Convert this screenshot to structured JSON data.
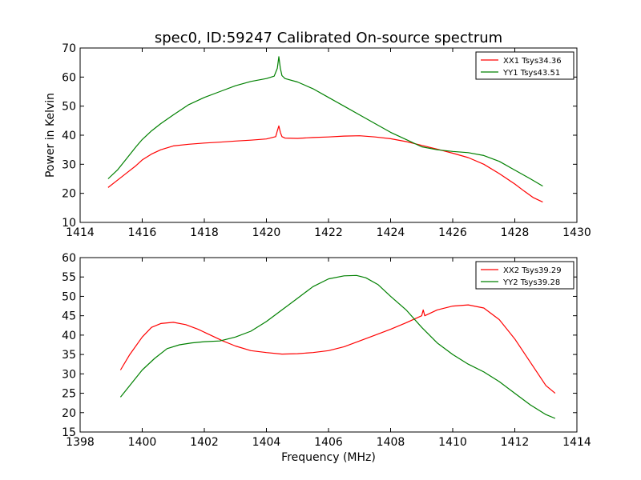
{
  "figure": {
    "title": "spec0, ID:59247 Calibrated On-source spectrum"
  },
  "chart_data": [
    {
      "type": "line",
      "title": "spec0, ID:59247 Calibrated On-source spectrum",
      "xlabel": "",
      "ylabel": "Power in Kelvin",
      "xlim": [
        1414,
        1430
      ],
      "ylim": [
        10,
        70
      ],
      "xticks": [
        1414,
        1416,
        1418,
        1420,
        1422,
        1424,
        1426,
        1428,
        1430
      ],
      "yticks": [
        10,
        20,
        30,
        40,
        50,
        60,
        70
      ],
      "grid": false,
      "legend": "top-right",
      "series": [
        {
          "name": "XX1 Tsys34.36",
          "color": "#ff0000",
          "x": [
            1414.9,
            1415.2,
            1415.5,
            1415.8,
            1416.0,
            1416.3,
            1416.6,
            1417.0,
            1417.5,
            1418.0,
            1418.5,
            1419.0,
            1419.5,
            1420.0,
            1420.3,
            1420.35,
            1420.4,
            1420.45,
            1420.5,
            1420.6,
            1421.0,
            1421.5,
            1422.0,
            1422.5,
            1423.0,
            1423.5,
            1424.0,
            1424.5,
            1425.0,
            1425.5,
            1426.0,
            1426.5,
            1427.0,
            1427.5,
            1428.0,
            1428.3,
            1428.6,
            1428.9
          ],
          "y": [
            22,
            24.5,
            27,
            29.5,
            31.5,
            33.5,
            35,
            36.3,
            36.9,
            37.3,
            37.6,
            38,
            38.3,
            38.7,
            39.5,
            41.5,
            43.2,
            41,
            39.5,
            39,
            38.9,
            39.2,
            39.4,
            39.7,
            39.8,
            39.4,
            38.8,
            37.8,
            36.5,
            35.2,
            33.8,
            32.3,
            30,
            26.8,
            23.2,
            20.8,
            18.5,
            17
          ]
        },
        {
          "name": "YY1 Tsys43.51",
          "color": "#008000",
          "x": [
            1414.9,
            1415.2,
            1415.5,
            1415.8,
            1416.0,
            1416.3,
            1416.6,
            1417.0,
            1417.5,
            1418.0,
            1418.5,
            1419.0,
            1419.5,
            1420.0,
            1420.25,
            1420.35,
            1420.4,
            1420.45,
            1420.5,
            1420.6,
            1421.0,
            1421.5,
            1422.0,
            1422.5,
            1423.0,
            1423.5,
            1424.0,
            1424.5,
            1425.0,
            1425.5,
            1426.0,
            1426.5,
            1427.0,
            1427.5,
            1428.0,
            1428.5,
            1428.9
          ],
          "y": [
            25,
            28,
            32,
            36,
            38.5,
            41.5,
            44,
            47,
            50.5,
            53,
            55,
            57,
            58.5,
            59.5,
            60.3,
            63,
            67,
            63,
            60.5,
            59.5,
            58.3,
            56,
            53,
            50,
            47,
            44,
            41,
            38.5,
            36,
            35,
            34.4,
            34,
            33,
            31,
            28,
            25,
            22.5
          ]
        }
      ]
    },
    {
      "type": "line",
      "title": "",
      "xlabel": "Frequency (MHz)",
      "ylabel": "",
      "xlim": [
        1398,
        1414
      ],
      "ylim": [
        15,
        60
      ],
      "xticks": [
        1398,
        1400,
        1402,
        1404,
        1406,
        1408,
        1410,
        1412,
        1414
      ],
      "yticks": [
        15,
        20,
        25,
        30,
        35,
        40,
        45,
        50,
        55,
        60
      ],
      "grid": false,
      "legend": "top-right",
      "series": [
        {
          "name": "XX2 Tsys39.29",
          "color": "#ff0000",
          "x": [
            1399.3,
            1399.6,
            1400.0,
            1400.3,
            1400.6,
            1401.0,
            1401.4,
            1401.8,
            1402.2,
            1402.6,
            1403.0,
            1403.5,
            1404.0,
            1404.5,
            1405.0,
            1405.5,
            1406.0,
            1406.5,
            1407.0,
            1407.5,
            1408.0,
            1408.5,
            1409.0,
            1409.05,
            1409.1,
            1409.5,
            1410.0,
            1410.5,
            1411.0,
            1411.5,
            1412.0,
            1412.5,
            1413.0,
            1413.3
          ],
          "y": [
            31,
            35,
            39.5,
            42,
            43,
            43.3,
            42.7,
            41.5,
            40,
            38.5,
            37.2,
            36,
            35.5,
            35.1,
            35.2,
            35.5,
            36,
            37,
            38.5,
            40,
            41.5,
            43.2,
            45,
            46.5,
            45,
            46.5,
            47.5,
            47.8,
            47,
            44,
            39,
            33,
            27,
            25
          ]
        },
        {
          "name": "YY2 Tsys39.28",
          "color": "#008000",
          "x": [
            1399.3,
            1399.6,
            1400.0,
            1400.4,
            1400.8,
            1401.2,
            1401.6,
            1402.0,
            1402.5,
            1403.0,
            1403.5,
            1404.0,
            1404.5,
            1405.0,
            1405.5,
            1406.0,
            1406.5,
            1406.9,
            1407.2,
            1407.6,
            1408.0,
            1408.5,
            1409.0,
            1409.5,
            1410.0,
            1410.5,
            1411.0,
            1411.5,
            1412.0,
            1412.5,
            1413.0,
            1413.3
          ],
          "y": [
            24,
            27,
            31,
            34,
            36.5,
            37.5,
            38,
            38.3,
            38.5,
            39.5,
            41,
            43.5,
            46.5,
            49.5,
            52.5,
            54.5,
            55.3,
            55.4,
            54.8,
            53,
            50,
            46.5,
            42,
            38,
            35,
            32.5,
            30.5,
            28,
            25,
            22,
            19.5,
            18.5
          ]
        }
      ]
    }
  ]
}
